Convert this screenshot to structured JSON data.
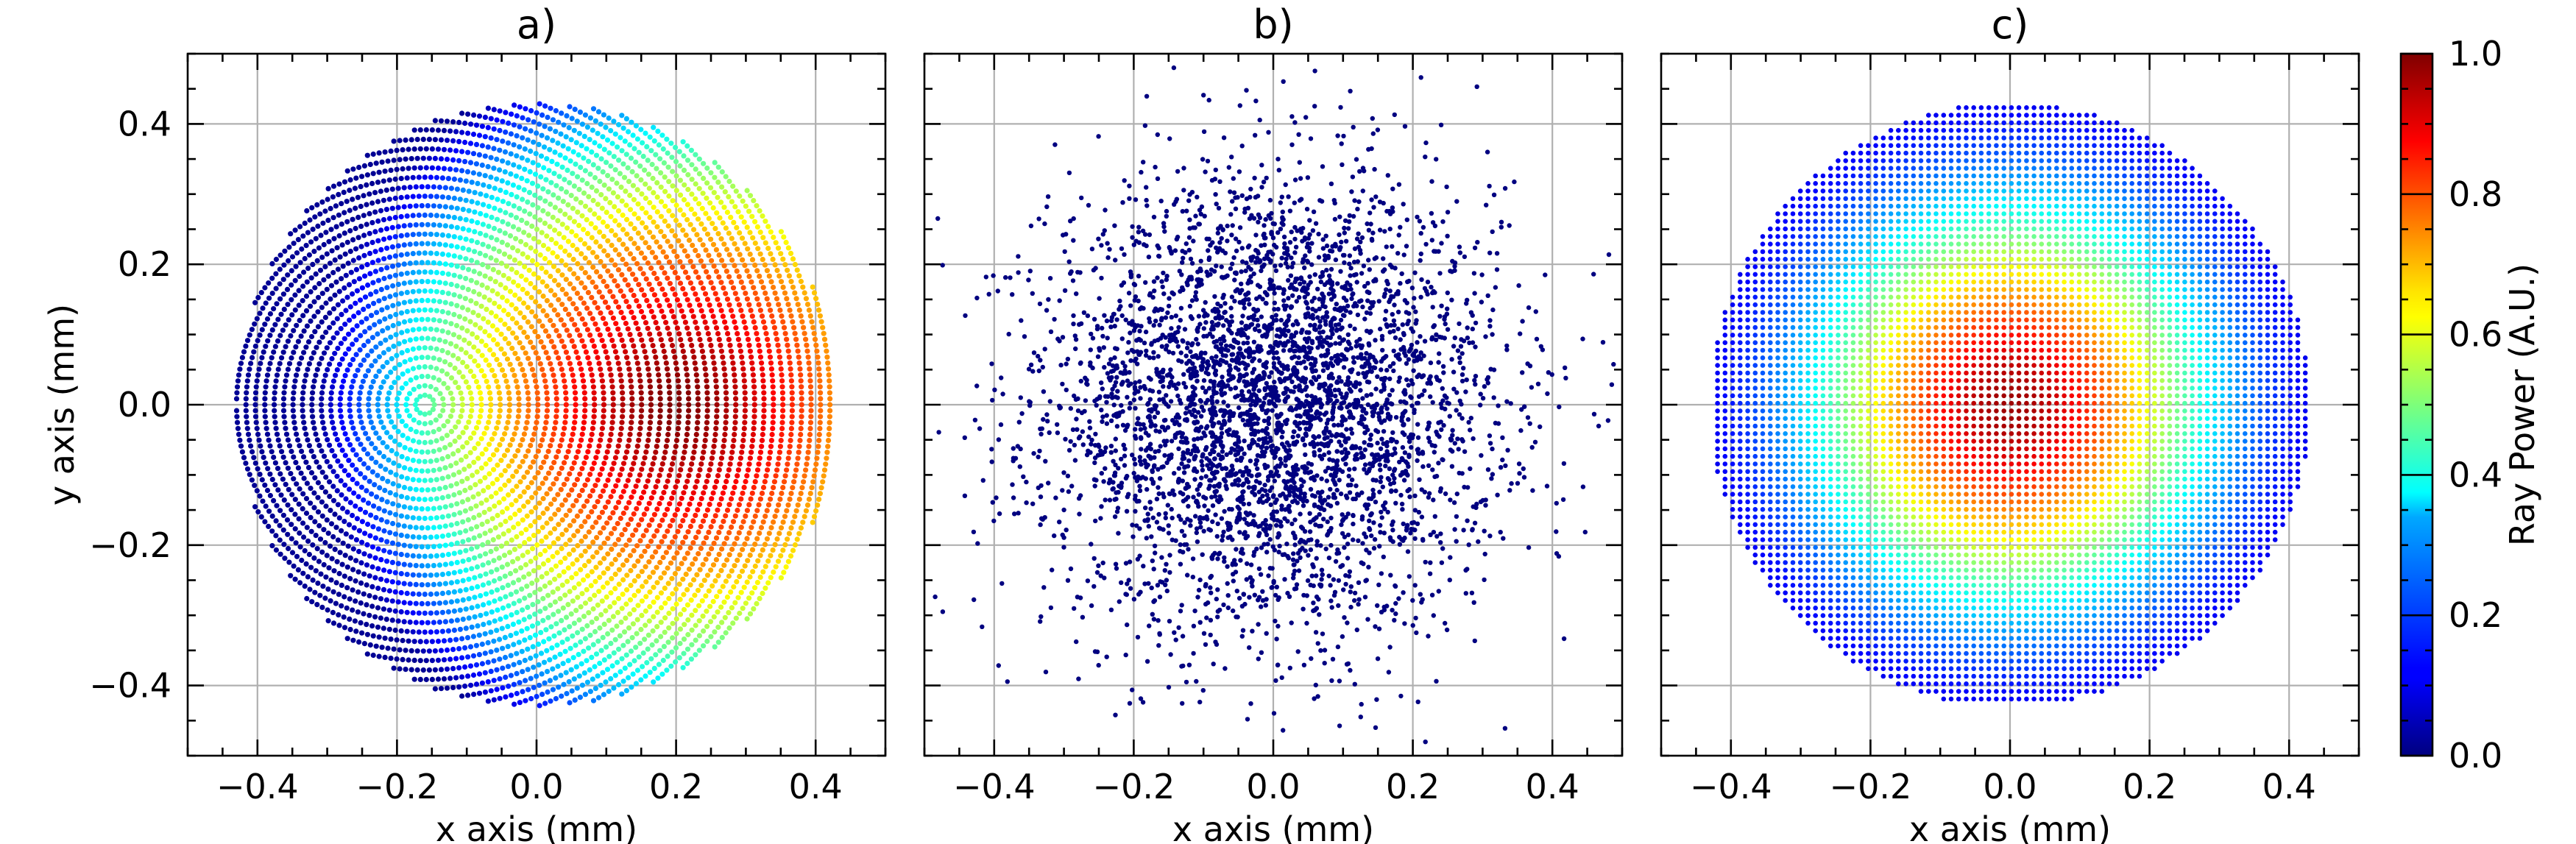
{
  "chart_data": [
    {
      "type": "scatter",
      "title": "a)",
      "xlabel": "x axis (mm)",
      "ylabel": "y axis (mm)",
      "xlim": [
        -0.5,
        0.5
      ],
      "ylim": [
        -0.5,
        0.5
      ],
      "xticks": [
        "−0.4",
        "−0.2",
        "0.0",
        "0.2",
        "0.4"
      ],
      "yticks": [
        "−0.4",
        "−0.2",
        "0.0",
        "0.2",
        "0.4"
      ],
      "grid": true,
      "pattern": "concentric rings of rays inside a disk of radius 0.43 mm, ring centre near (-0.16, 0.0)",
      "disk_radius": 0.43,
      "ring_center": [
        -0.16,
        0.0
      ],
      "power_peak_at": [
        0.2,
        0.0
      ]
    },
    {
      "type": "scatter",
      "title": "b)",
      "xlabel": "x axis (mm)",
      "ylabel": "",
      "xlim": [
        -0.5,
        0.5
      ],
      "ylim": [
        -0.5,
        0.5
      ],
      "xticks": [
        "−0.4",
        "−0.2",
        "0.0",
        "0.2",
        "0.4"
      ],
      "grid": true,
      "pattern": "random rays, approximately gaussian, sigma about 0.16 mm, all low power",
      "color": "#000080"
    },
    {
      "type": "scatter",
      "title": "c)",
      "xlabel": "x axis (mm)",
      "ylabel": "",
      "xlim": [
        -0.5,
        0.5
      ],
      "ylim": [
        -0.5,
        0.5
      ],
      "xticks": [
        "−0.4",
        "−0.2",
        "0.0",
        "0.2",
        "0.4"
      ],
      "grid": true,
      "pattern": "square grid of rays clipped to a disk of radius 0.43 mm, power peaked at centre",
      "disk_radius": 0.43,
      "power_peak_at": [
        0.0,
        0.0
      ]
    }
  ],
  "colorbar": {
    "label": "Ray Power (A.U.)",
    "range": [
      0.0,
      1.0
    ],
    "ticks": [
      "0.0",
      "0.2",
      "0.4",
      "0.6",
      "0.8",
      "1.0"
    ],
    "colormap": "jet",
    "colors": [
      "#000080",
      "#0000ff",
      "#00ffff",
      "#ffff00",
      "#ff0000",
      "#800000"
    ]
  }
}
